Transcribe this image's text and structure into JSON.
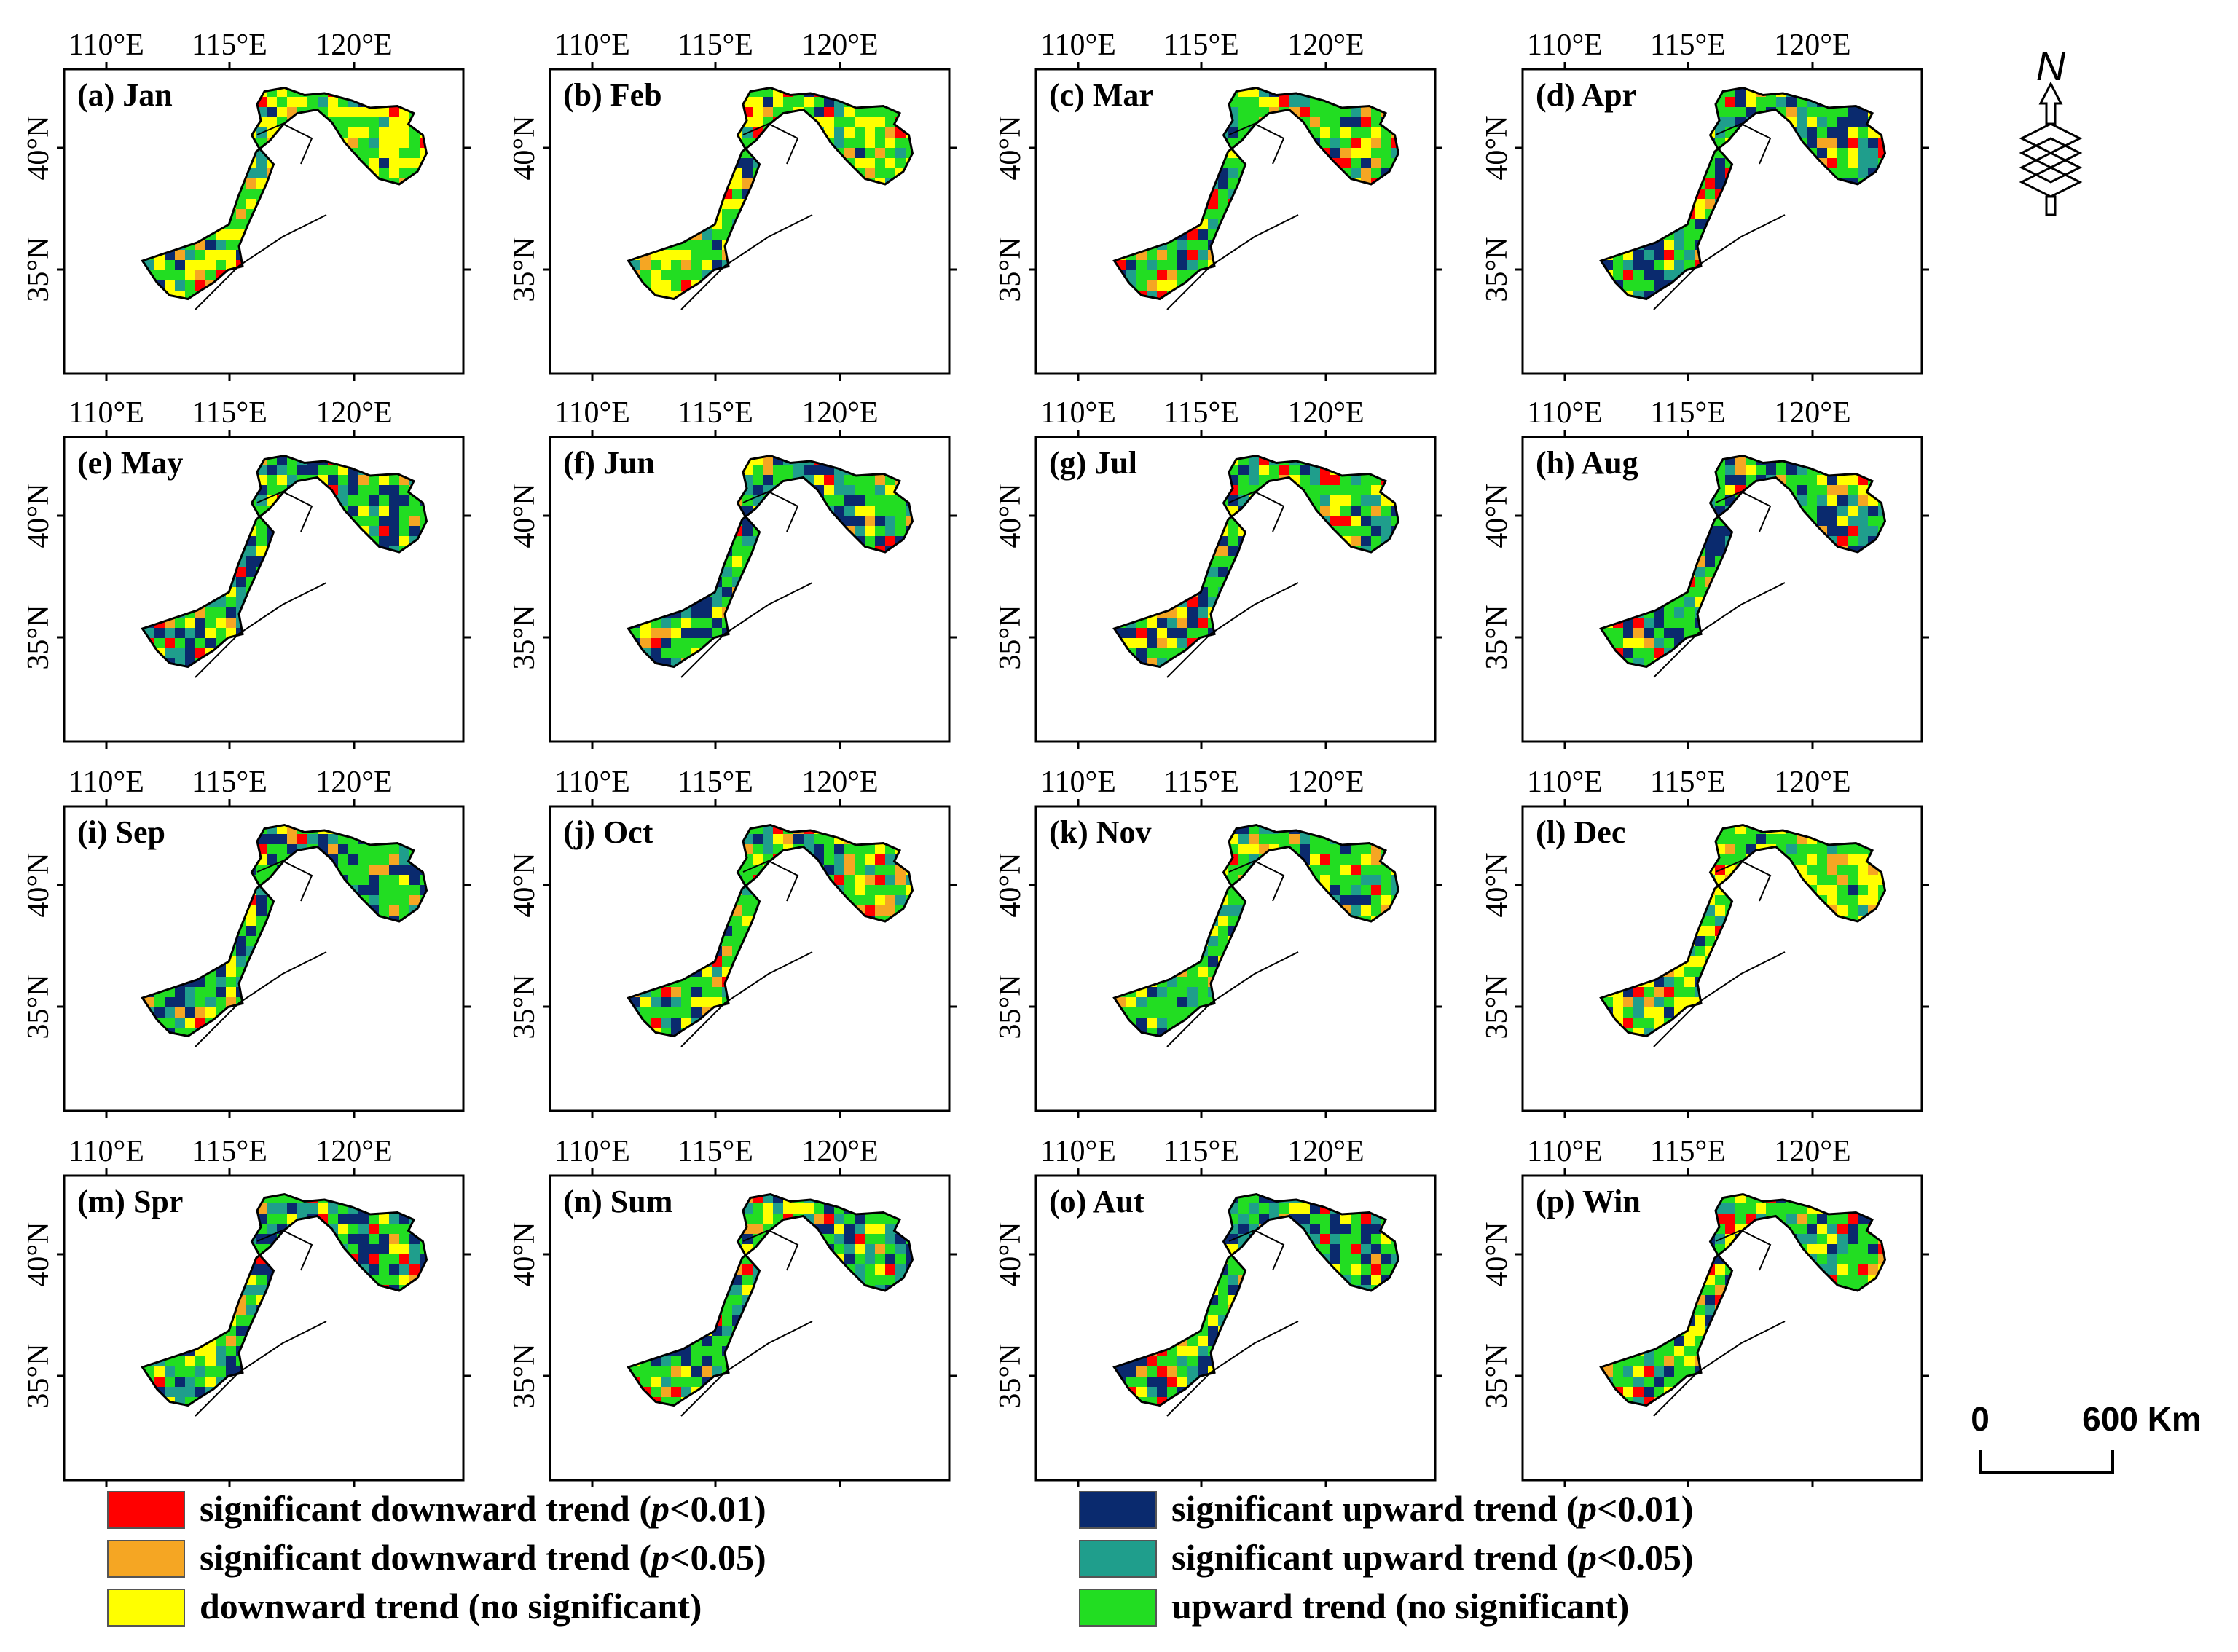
{
  "figure": {
    "panels": [
      {
        "label": "(a) Jan",
        "pattern": "dry"
      },
      {
        "label": "(b) Feb",
        "pattern": "dry"
      },
      {
        "label": "(c) Mar",
        "pattern": "mixed"
      },
      {
        "label": "(d) Apr",
        "pattern": "wet"
      },
      {
        "label": "(e) May",
        "pattern": "wet"
      },
      {
        "label": "(f) Jun",
        "pattern": "wet"
      },
      {
        "label": "(g) Jul",
        "pattern": "mixed"
      },
      {
        "label": "(h) Aug",
        "pattern": "wet"
      },
      {
        "label": "(i) Sep",
        "pattern": "wet"
      },
      {
        "label": "(j) Oct",
        "pattern": "mixed"
      },
      {
        "label": "(k) Nov",
        "pattern": "green"
      },
      {
        "label": "(l) Dec",
        "pattern": "dry"
      },
      {
        "label": "(m) Spr",
        "pattern": "wet"
      },
      {
        "label": "(n) Sum",
        "pattern": "wet"
      },
      {
        "label": "(o) Aut",
        "pattern": "wet"
      },
      {
        "label": "(p) Win",
        "pattern": "mixed"
      }
    ],
    "x_ticks": [
      "110°E",
      "115°E",
      "120°E"
    ],
    "y_ticks": [
      "40°N",
      "35°N"
    ],
    "legend": [
      {
        "label": "significant downward trend (",
        "p": "p",
        "tail": "<0.01)",
        "color": "#ff0000"
      },
      {
        "label": "significant downward trend (",
        "p": "p",
        "tail": "<0.05)",
        "color": "#f5a623"
      },
      {
        "label": "downward trend (no significant)",
        "p": "",
        "tail": "",
        "color": "#ffff00"
      },
      {
        "label": "significant upward trend (",
        "p": "p",
        "tail": "<0.01)",
        "color": "#0a2a6e"
      },
      {
        "label": "significant upward trend (",
        "p": "p",
        "tail": "<0.05)",
        "color": "#1f9e8c"
      },
      {
        "label": "upward trend (no significant)",
        "p": "",
        "tail": "",
        "color": "#22dd22"
      }
    ],
    "north_arrow": {
      "letter": "N"
    },
    "scale_bar": {
      "start": "0",
      "end": "600 Km"
    },
    "colors": {
      "down_001": "#ff0000",
      "down_005": "#f5a623",
      "down_ns": "#ffff00",
      "up_001": "#0a2a6e",
      "up_005": "#1f9e8c",
      "up_ns": "#22dd22"
    }
  }
}
